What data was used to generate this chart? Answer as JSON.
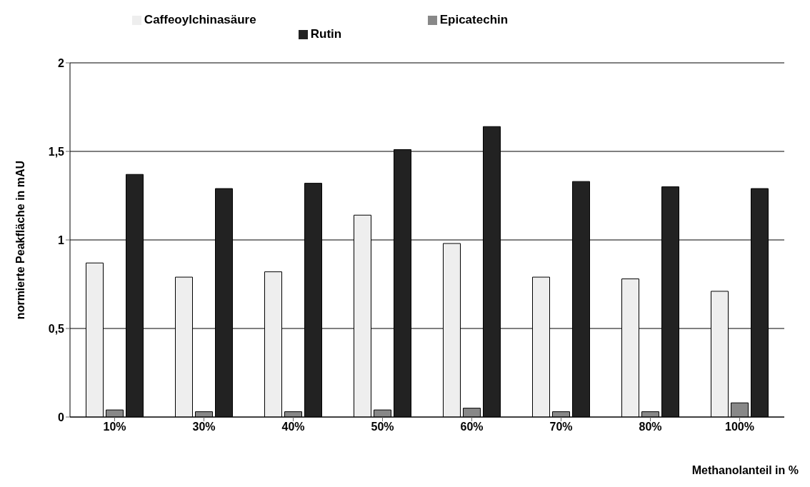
{
  "chart_data": {
    "type": "bar",
    "xlabel": "Methanolanteil in %",
    "ylabel": "normierte Peakfläche in mAU",
    "categories": [
      "10%",
      "30%",
      "40%",
      "50%",
      "60%",
      "70%",
      "80%",
      "100%"
    ],
    "series": [
      {
        "name": "Caffeoylchinasäure",
        "color": "#eeeeee",
        "values": [
          0.87,
          0.79,
          0.82,
          1.14,
          0.98,
          0.79,
          0.78,
          0.71
        ]
      },
      {
        "name": "Epicatechin",
        "color": "#888888",
        "values": [
          0.04,
          0.03,
          0.03,
          0.04,
          0.05,
          0.03,
          0.03,
          0.08
        ]
      },
      {
        "name": "Rutin",
        "color": "#222222",
        "values": [
          1.37,
          1.29,
          1.32,
          1.51,
          1.64,
          1.33,
          1.3,
          1.29
        ]
      }
    ],
    "ylim": [
      0,
      2
    ],
    "yticks": [
      0,
      {
        "value": 0.5,
        "label": "0,5"
      },
      1,
      {
        "value": 1.5,
        "label": "1,5"
      },
      2
    ],
    "grid": "y",
    "legend": "top"
  }
}
